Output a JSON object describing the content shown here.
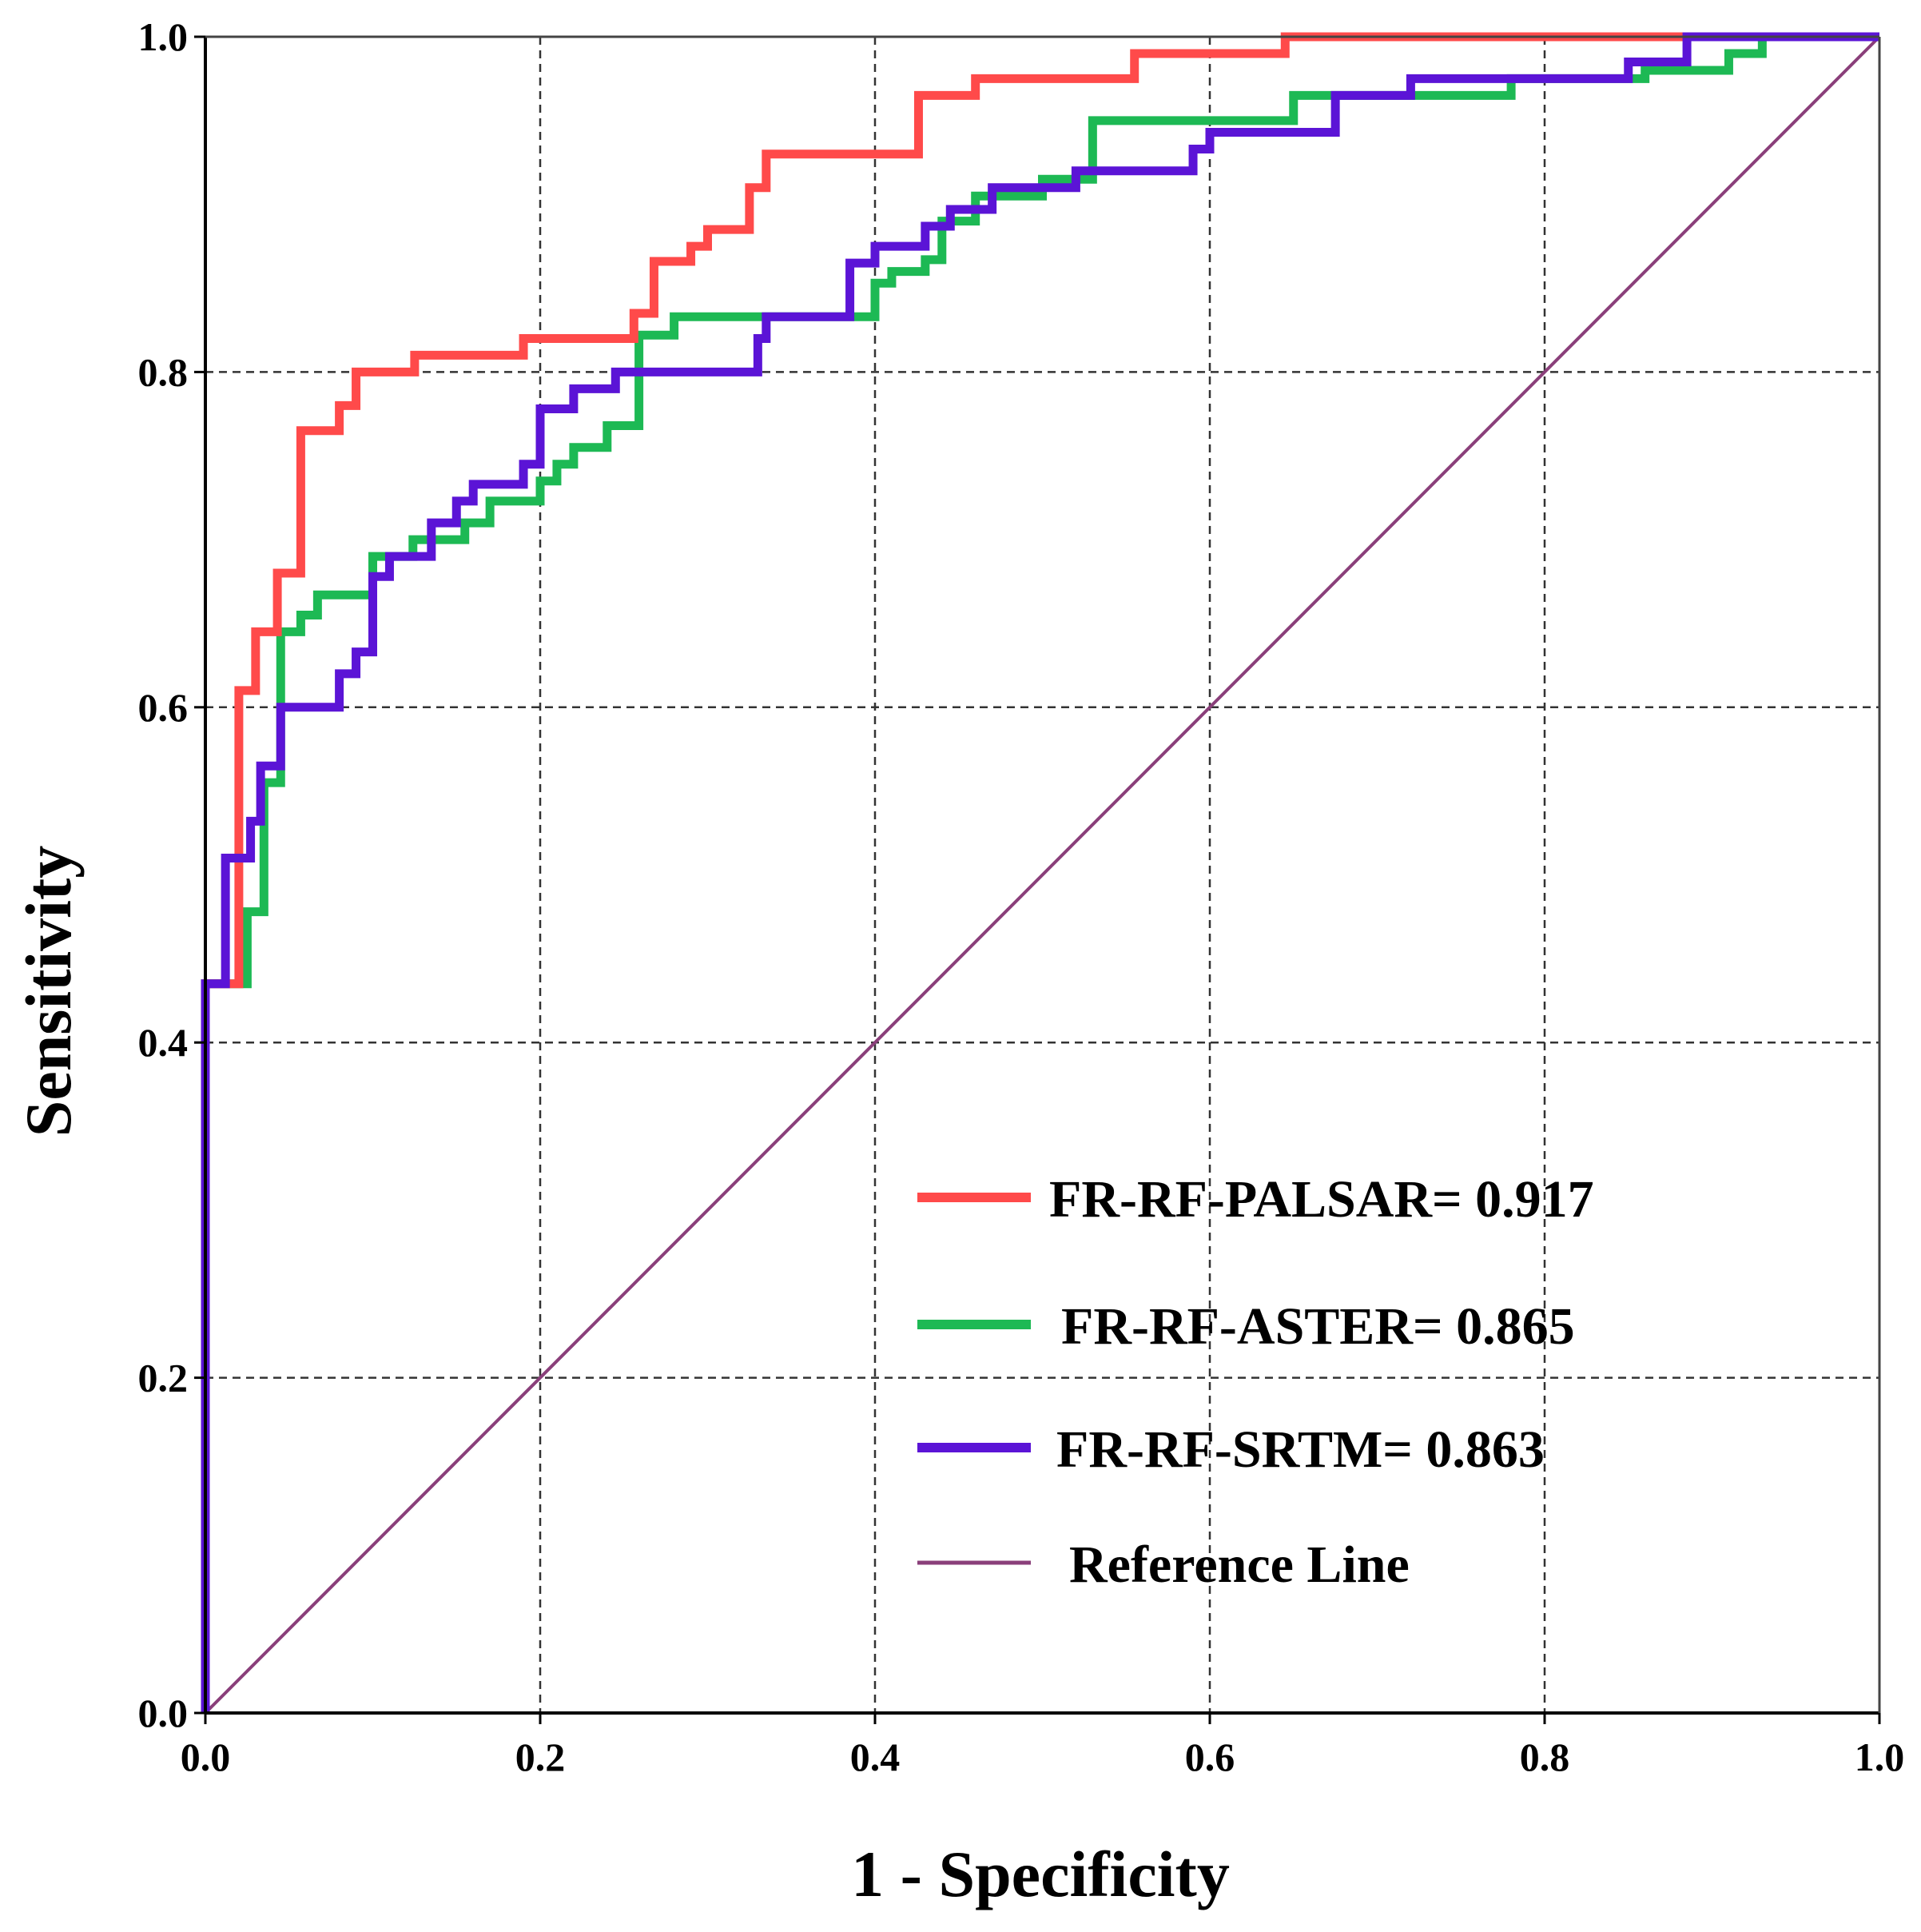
{
  "chart_data": {
    "type": "line",
    "title": "",
    "xlabel": "1 - Specificity",
    "ylabel": "Sensitivity",
    "xlim": [
      0.0,
      1.0
    ],
    "ylim": [
      0.0,
      1.0
    ],
    "x_ticks": [
      "0.0",
      "0.2",
      "0.4",
      "0.6",
      "0.8",
      "1.0"
    ],
    "y_ticks": [
      "0.0",
      "0.2",
      "0.4",
      "0.6",
      "0.8",
      "1.0"
    ],
    "grid": true,
    "legend_position": "bottom-right",
    "series": [
      {
        "name": "FR-RF-PALSAR= 0.917",
        "color": "#ff4a4a",
        "points": [
          [
            0,
            0
          ],
          [
            0,
            0.435
          ],
          [
            0.02,
            0.435
          ],
          [
            0.02,
            0.61
          ],
          [
            0.03,
            0.61
          ],
          [
            0.03,
            0.645
          ],
          [
            0.043,
            0.645
          ],
          [
            0.043,
            0.68
          ],
          [
            0.057,
            0.68
          ],
          [
            0.057,
            0.765
          ],
          [
            0.08,
            0.765
          ],
          [
            0.08,
            0.78
          ],
          [
            0.09,
            0.78
          ],
          [
            0.09,
            0.8
          ],
          [
            0.125,
            0.8
          ],
          [
            0.125,
            0.81
          ],
          [
            0.19,
            0.81
          ],
          [
            0.19,
            0.82
          ],
          [
            0.256,
            0.82
          ],
          [
            0.256,
            0.835
          ],
          [
            0.268,
            0.835
          ],
          [
            0.268,
            0.866
          ],
          [
            0.29,
            0.866
          ],
          [
            0.29,
            0.875
          ],
          [
            0.3,
            0.875
          ],
          [
            0.3,
            0.885
          ],
          [
            0.325,
            0.885
          ],
          [
            0.325,
            0.91
          ],
          [
            0.335,
            0.91
          ],
          [
            0.335,
            0.93
          ],
          [
            0.426,
            0.93
          ],
          [
            0.426,
            0.965
          ],
          [
            0.46,
            0.965
          ],
          [
            0.46,
            0.975
          ],
          [
            0.555,
            0.975
          ],
          [
            0.555,
            0.99
          ],
          [
            0.645,
            0.99
          ],
          [
            0.645,
            1.0
          ],
          [
            1.0,
            1.0
          ]
        ]
      },
      {
        "name": "FR-RF-ASTER= 0.865",
        "color": "#1db954",
        "points": [
          [
            0,
            0
          ],
          [
            0,
            0.435
          ],
          [
            0.025,
            0.435
          ],
          [
            0.025,
            0.478
          ],
          [
            0.035,
            0.478
          ],
          [
            0.035,
            0.555
          ],
          [
            0.045,
            0.555
          ],
          [
            0.045,
            0.645
          ],
          [
            0.057,
            0.645
          ],
          [
            0.057,
            0.655
          ],
          [
            0.067,
            0.655
          ],
          [
            0.067,
            0.667
          ],
          [
            0.1,
            0.667
          ],
          [
            0.1,
            0.69
          ],
          [
            0.124,
            0.69
          ],
          [
            0.124,
            0.7
          ],
          [
            0.155,
            0.7
          ],
          [
            0.155,
            0.71
          ],
          [
            0.17,
            0.71
          ],
          [
            0.17,
            0.723
          ],
          [
            0.2,
            0.723
          ],
          [
            0.2,
            0.735
          ],
          [
            0.21,
            0.735
          ],
          [
            0.21,
            0.745
          ],
          [
            0.22,
            0.745
          ],
          [
            0.22,
            0.755
          ],
          [
            0.24,
            0.755
          ],
          [
            0.24,
            0.768
          ],
          [
            0.259,
            0.768
          ],
          [
            0.259,
            0.822
          ],
          [
            0.28,
            0.822
          ],
          [
            0.28,
            0.833
          ],
          [
            0.4,
            0.833
          ],
          [
            0.4,
            0.853
          ],
          [
            0.41,
            0.853
          ],
          [
            0.41,
            0.86
          ],
          [
            0.43,
            0.86
          ],
          [
            0.43,
            0.867
          ],
          [
            0.44,
            0.867
          ],
          [
            0.44,
            0.89
          ],
          [
            0.46,
            0.89
          ],
          [
            0.46,
            0.905
          ],
          [
            0.5,
            0.905
          ],
          [
            0.5,
            0.915
          ],
          [
            0.53,
            0.915
          ],
          [
            0.53,
            0.95
          ],
          [
            0.65,
            0.95
          ],
          [
            0.65,
            0.965
          ],
          [
            0.78,
            0.965
          ],
          [
            0.78,
            0.975
          ],
          [
            0.86,
            0.975
          ],
          [
            0.86,
            0.98
          ],
          [
            0.91,
            0.98
          ],
          [
            0.91,
            0.99
          ],
          [
            0.93,
            0.99
          ],
          [
            0.93,
            1.0
          ],
          [
            1.0,
            1.0
          ]
        ]
      },
      {
        "name": "FR-RF-SRTM= 0.863",
        "color": "#5b14d6",
        "points": [
          [
            0,
            0
          ],
          [
            0,
            0.435
          ],
          [
            0.012,
            0.435
          ],
          [
            0.012,
            0.51
          ],
          [
            0.027,
            0.51
          ],
          [
            0.027,
            0.532
          ],
          [
            0.033,
            0.532
          ],
          [
            0.033,
            0.565
          ],
          [
            0.045,
            0.565
          ],
          [
            0.045,
            0.6
          ],
          [
            0.08,
            0.6
          ],
          [
            0.08,
            0.62
          ],
          [
            0.09,
            0.62
          ],
          [
            0.09,
            0.633
          ],
          [
            0.1,
            0.633
          ],
          [
            0.1,
            0.678
          ],
          [
            0.11,
            0.678
          ],
          [
            0.11,
            0.69
          ],
          [
            0.135,
            0.69
          ],
          [
            0.135,
            0.71
          ],
          [
            0.15,
            0.71
          ],
          [
            0.15,
            0.723
          ],
          [
            0.16,
            0.723
          ],
          [
            0.16,
            0.733
          ],
          [
            0.19,
            0.733
          ],
          [
            0.19,
            0.745
          ],
          [
            0.2,
            0.745
          ],
          [
            0.2,
            0.778
          ],
          [
            0.22,
            0.778
          ],
          [
            0.22,
            0.79
          ],
          [
            0.245,
            0.79
          ],
          [
            0.245,
            0.8
          ],
          [
            0.33,
            0.8
          ],
          [
            0.33,
            0.82
          ],
          [
            0.335,
            0.82
          ],
          [
            0.335,
            0.833
          ],
          [
            0.385,
            0.833
          ],
          [
            0.385,
            0.865
          ],
          [
            0.4,
            0.865
          ],
          [
            0.4,
            0.875
          ],
          [
            0.43,
            0.875
          ],
          [
            0.43,
            0.887
          ],
          [
            0.445,
            0.887
          ],
          [
            0.445,
            0.897
          ],
          [
            0.47,
            0.897
          ],
          [
            0.47,
            0.91
          ],
          [
            0.52,
            0.91
          ],
          [
            0.52,
            0.92
          ],
          [
            0.59,
            0.92
          ],
          [
            0.59,
            0.933
          ],
          [
            0.6,
            0.933
          ],
          [
            0.6,
            0.943
          ],
          [
            0.675,
            0.943
          ],
          [
            0.675,
            0.965
          ],
          [
            0.72,
            0.965
          ],
          [
            0.72,
            0.975
          ],
          [
            0.85,
            0.975
          ],
          [
            0.85,
            0.985
          ],
          [
            0.885,
            0.985
          ],
          [
            0.885,
            1.0
          ],
          [
            1.0,
            1.0
          ]
        ]
      },
      {
        "name": "Reference Line",
        "color": "#8a3f7a",
        "points": [
          [
            0,
            0
          ],
          [
            1,
            1
          ]
        ]
      }
    ]
  }
}
